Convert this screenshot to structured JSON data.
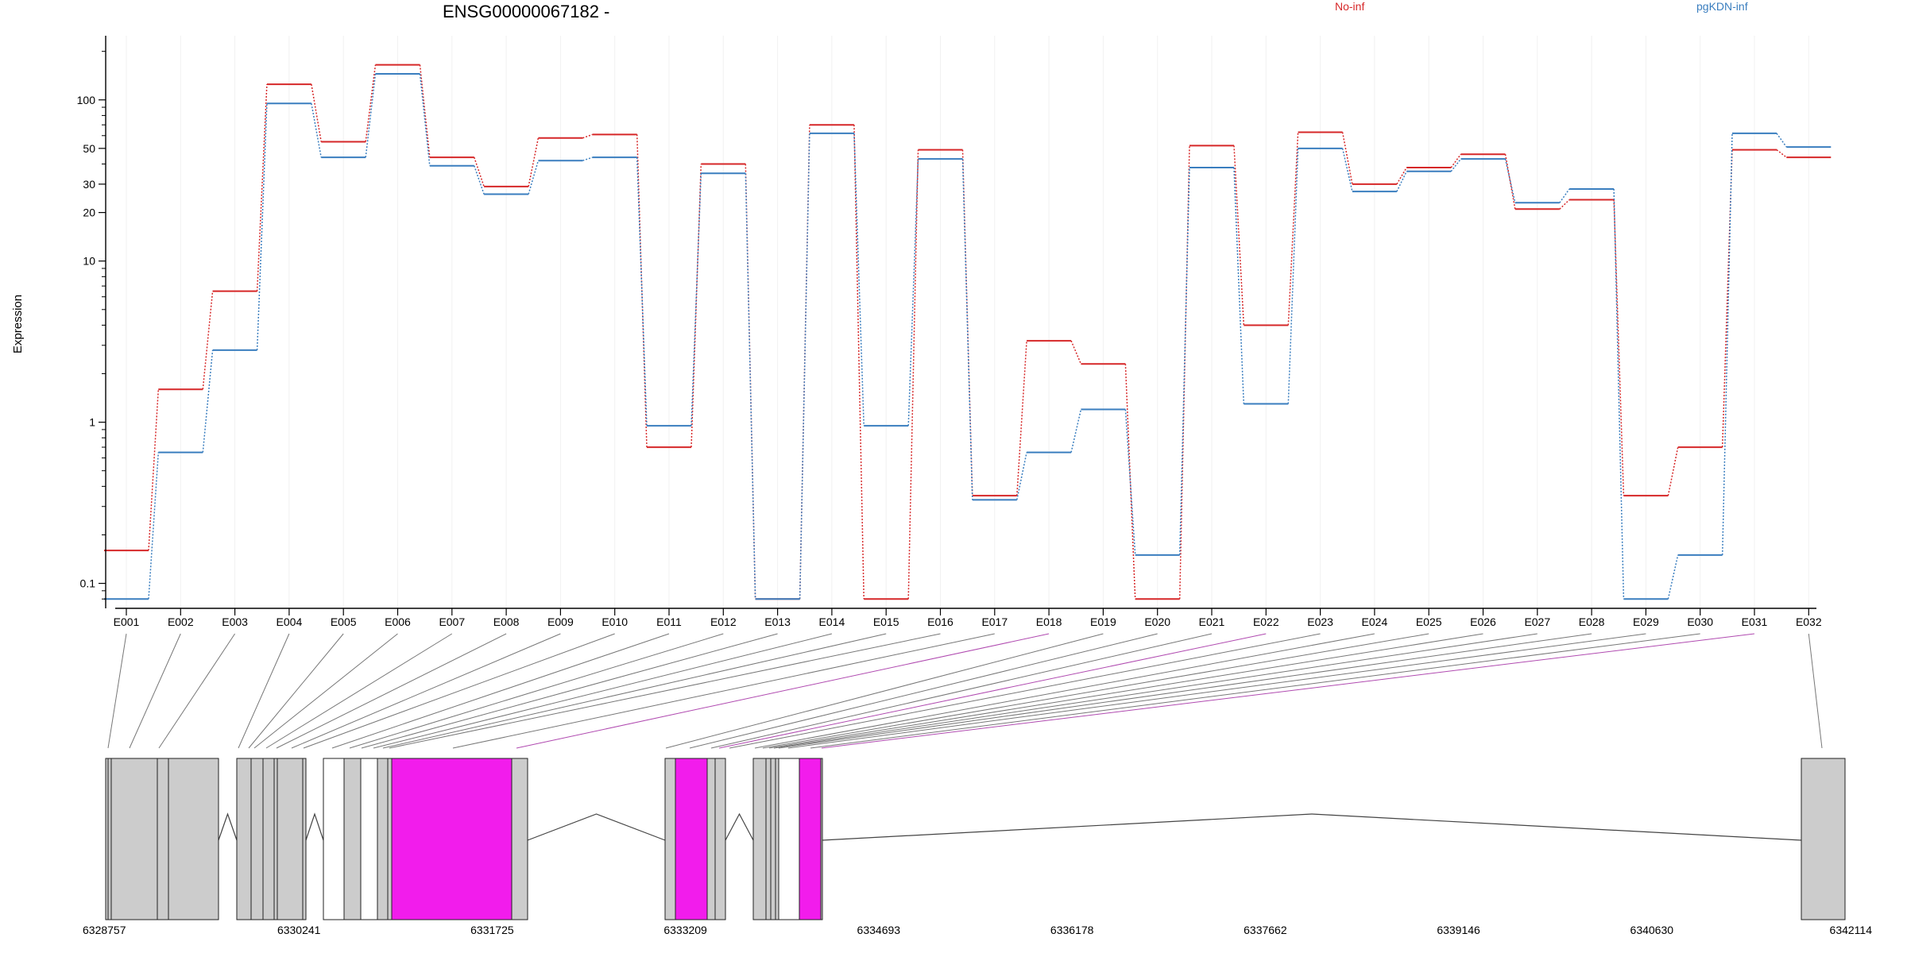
{
  "chart_data": {
    "type": "line",
    "title": "ENSG00000067182 -",
    "ylabel": "Expression",
    "xlabel": "",
    "y_scale": "log",
    "ylim": [
      0.07,
      250
    ],
    "y_ticks": [
      {
        "value": 0.1,
        "label": "0.1"
      },
      {
        "value": 1,
        "label": "1"
      },
      {
        "value": 10,
        "label": "10"
      },
      {
        "value": 20,
        "label": "20"
      },
      {
        "value": 30,
        "label": "30"
      },
      {
        "value": 50,
        "label": "50"
      },
      {
        "value": 100,
        "label": "100"
      }
    ],
    "legend_position": "top-right",
    "grid": "vertical",
    "categories": [
      "E001",
      "E002",
      "E003",
      "E004",
      "E005",
      "E006",
      "E007",
      "E008",
      "E009",
      "E010",
      "E011",
      "E012",
      "E013",
      "E014",
      "E015",
      "E016",
      "E017",
      "E018",
      "E019",
      "E020",
      "E021",
      "E022",
      "E023",
      "E024",
      "E025",
      "E026",
      "E027",
      "E028",
      "E029",
      "E030",
      "E031",
      "E032"
    ],
    "series": [
      {
        "name": "No-inf",
        "color": "#d62728",
        "values": [
          0.16,
          1.6,
          6.5,
          125,
          55,
          165,
          44,
          29,
          58,
          61,
          0.7,
          40,
          0.08,
          70,
          0.08,
          49,
          0.35,
          3.2,
          2.3,
          0.08,
          52,
          4.0,
          63,
          30,
          38,
          46,
          21,
          24,
          0.35,
          0.7,
          49,
          44
        ]
      },
      {
        "name": "pgKDN-inf",
        "color": "#3a7ebf",
        "values": [
          0.08,
          0.65,
          2.8,
          95,
          44,
          145,
          39,
          26,
          42,
          44,
          0.95,
          35,
          0.08,
          62,
          0.95,
          43,
          0.33,
          0.65,
          1.2,
          0.15,
          38,
          1.3,
          50,
          27,
          36,
          43,
          23,
          28,
          0.08,
          0.15,
          62,
          51
        ]
      }
    ],
    "gene_model": {
      "coord_labels": [
        "6328757",
        "6330241",
        "6331725",
        "6333209",
        "6334693",
        "6336178",
        "6337662",
        "6339146",
        "6340630",
        "6342114"
      ],
      "exon_colors": {
        "normal": "#cccccc",
        "highlight": "#f21cec",
        "none": "#ffffff"
      },
      "highlight_exons": [
        "E018",
        "E022",
        "E031"
      ]
    }
  }
}
